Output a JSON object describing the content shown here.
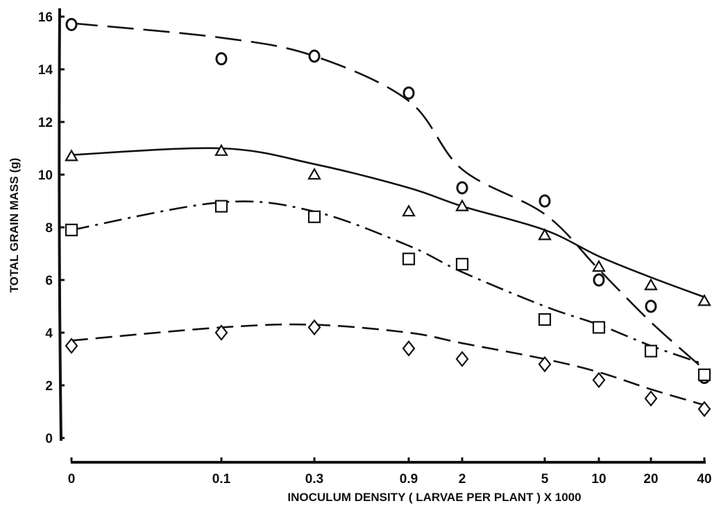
{
  "chart_data": {
    "type": "scatter",
    "title": "",
    "xlabel": "INOCULUM DENSITY ( LARVAE PER PLANT ) X 1000",
    "ylabel": "TOTAL GRAIN MASS (g)",
    "ylim": [
      0,
      16
    ],
    "yticks": [
      "0",
      "2",
      "4",
      "6",
      "8",
      "10",
      "12",
      "14",
      "16"
    ],
    "categories": [
      "0",
      "0.1",
      "0.3",
      "0.9",
      "2",
      "5",
      "10",
      "20",
      "40"
    ],
    "grid": false,
    "legend": "none",
    "series": [
      {
        "marker": "circle",
        "line_style": "long-dash",
        "values": [
          15.7,
          14.4,
          14.5,
          13.1,
          9.5,
          9.0,
          6.0,
          5.0,
          2.3
        ],
        "fit": [
          15.75,
          15.2,
          14.5,
          12.8,
          10.2,
          8.5,
          6.4,
          4.4,
          2.6
        ]
      },
      {
        "marker": "triangle",
        "line_style": "solid",
        "values": [
          10.7,
          10.9,
          10.0,
          8.6,
          8.8,
          7.7,
          6.5,
          5.8,
          5.2
        ],
        "fit": [
          10.75,
          11.0,
          10.4,
          9.5,
          8.8,
          7.9,
          6.9,
          6.1,
          5.35
        ]
      },
      {
        "marker": "square",
        "line_style": "dash-dot",
        "values": [
          7.9,
          8.8,
          8.4,
          6.8,
          6.6,
          4.5,
          4.2,
          3.3,
          2.4
        ],
        "fit": [
          7.9,
          8.95,
          8.6,
          7.3,
          6.3,
          5.0,
          4.3,
          3.5,
          2.8
        ]
      },
      {
        "marker": "diamond",
        "line_style": "medium-dash",
        "values": [
          3.5,
          4.0,
          4.2,
          3.4,
          3.0,
          2.8,
          2.2,
          1.5,
          1.1
        ],
        "fit": [
          3.7,
          4.2,
          4.3,
          4.0,
          3.6,
          3.0,
          2.5,
          1.85,
          1.25
        ]
      }
    ]
  }
}
